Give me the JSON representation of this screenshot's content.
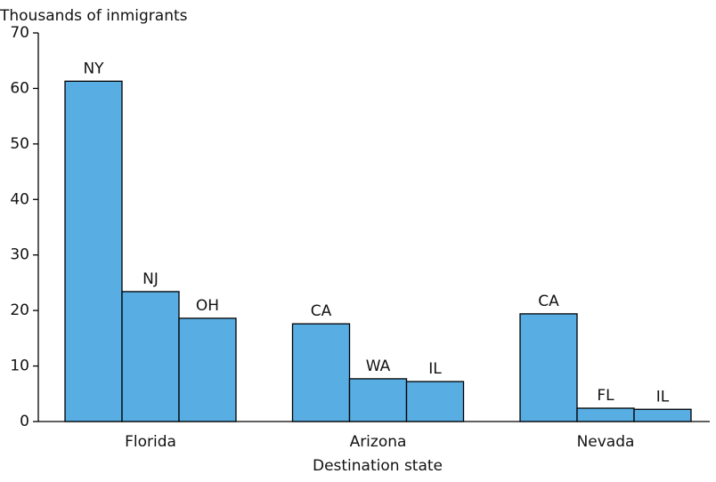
{
  "chart_data": {
    "type": "bar",
    "y_label": "Thousands of inmigrants",
    "x_label": "Destination state",
    "color": "#58ade3",
    "groups": [
      {
        "name": "Florida",
        "bars": [
          {
            "label": "NY",
            "value": 61.3
          },
          {
            "label": "NJ",
            "value": 23.4
          },
          {
            "label": "OH",
            "value": 18.6
          }
        ]
      },
      {
        "name": "Arizona",
        "bars": [
          {
            "label": "CA",
            "value": 17.6
          },
          {
            "label": "WA",
            "value": 7.7
          },
          {
            "label": "IL",
            "value": 7.2
          }
        ]
      },
      {
        "name": "Nevada",
        "bars": [
          {
            "label": "CA",
            "value": 19.4
          },
          {
            "label": "FL",
            "value": 2.4
          },
          {
            "label": "IL",
            "value": 2.2
          }
        ]
      }
    ],
    "ylim": [
      0,
      70
    ],
    "yticks": [
      0,
      10,
      20,
      30,
      40,
      50,
      60,
      70
    ]
  }
}
